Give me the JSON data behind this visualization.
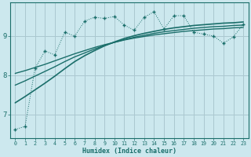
{
  "title": "",
  "xlabel": "Humidex (Indice chaleur)",
  "bg_color": "#cce8ee",
  "grid_color": "#aac8d0",
  "line_color": "#1a6e6a",
  "x_values": [
    0,
    1,
    2,
    3,
    4,
    5,
    6,
    7,
    8,
    9,
    10,
    11,
    12,
    13,
    14,
    15,
    16,
    17,
    18,
    19,
    20,
    21,
    22,
    23
  ],
  "zigzag_y": [
    6.62,
    6.7,
    8.18,
    8.62,
    8.52,
    9.1,
    9.0,
    9.38,
    9.48,
    9.45,
    9.5,
    9.28,
    9.15,
    9.48,
    9.62,
    9.18,
    9.52,
    9.52,
    9.1,
    9.05,
    9.0,
    8.82,
    8.98,
    9.3
  ],
  "line1_y": [
    8.05,
    8.12,
    8.2,
    8.28,
    8.37,
    8.46,
    8.55,
    8.63,
    8.71,
    8.78,
    8.84,
    8.9,
    8.95,
    8.99,
    9.03,
    9.06,
    9.09,
    9.12,
    9.14,
    9.16,
    9.18,
    9.19,
    9.21,
    9.22
  ],
  "line2_y": [
    7.75,
    7.86,
    7.98,
    8.1,
    8.22,
    8.35,
    8.47,
    8.57,
    8.67,
    8.76,
    8.84,
    8.91,
    8.97,
    9.02,
    9.07,
    9.11,
    9.14,
    9.17,
    9.2,
    9.22,
    9.24,
    9.25,
    9.27,
    9.28
  ],
  "line3_y": [
    7.3,
    7.46,
    7.63,
    7.8,
    7.98,
    8.17,
    8.35,
    8.5,
    8.63,
    8.75,
    8.85,
    8.94,
    9.01,
    9.07,
    9.12,
    9.17,
    9.21,
    9.24,
    9.27,
    9.29,
    9.31,
    9.33,
    9.34,
    9.36
  ],
  "ylim": [
    6.4,
    9.85
  ],
  "yticks": [
    7.0,
    8.0,
    9.0
  ],
  "xticks": [
    0,
    1,
    2,
    3,
    4,
    5,
    6,
    7,
    8,
    9,
    10,
    11,
    12,
    13,
    14,
    15,
    16,
    17,
    18,
    19,
    20,
    21,
    22,
    23
  ]
}
